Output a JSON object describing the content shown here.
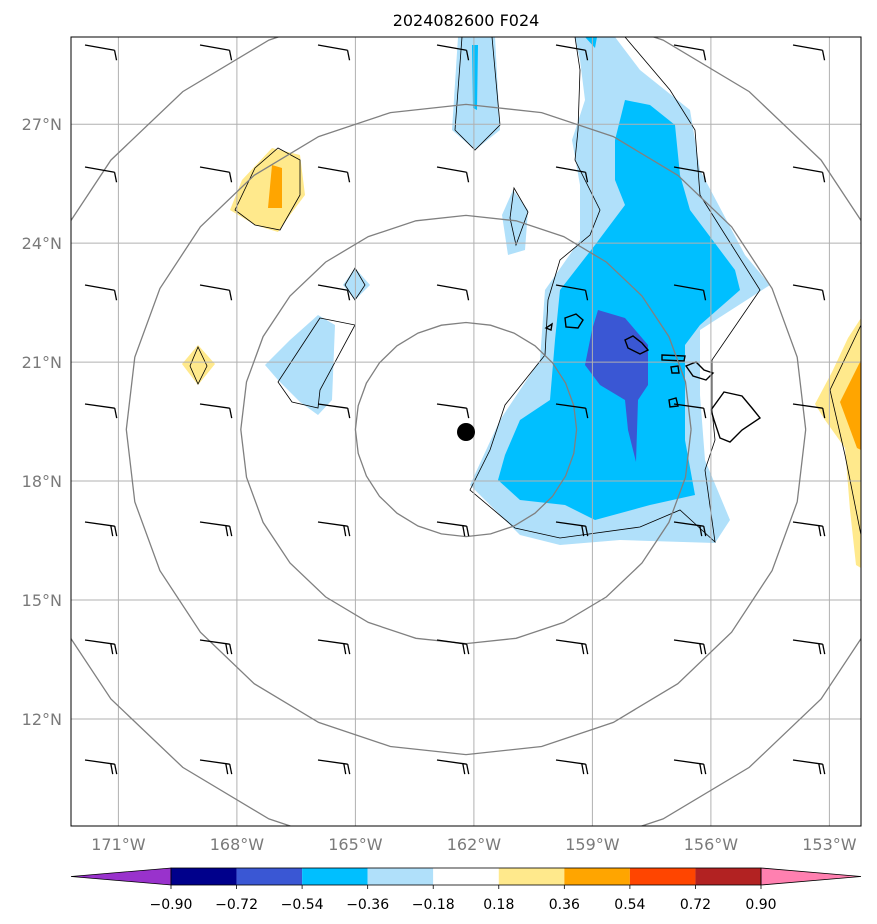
{
  "title": "2024082600 F024",
  "map": {
    "lon_range": [
      -172.2,
      -152.2
    ],
    "lat_range": [
      9.3,
      29.2
    ],
    "grid_lons": [
      -171,
      -168,
      -165,
      -162,
      -159,
      -156,
      -153
    ],
    "grid_lats": [
      12,
      15,
      18,
      21,
      24,
      27
    ],
    "lon_labels": [
      "171°W",
      "168°W",
      "165°W",
      "162°W",
      "159°W",
      "156°W",
      "153°W"
    ],
    "lat_labels": [
      "12°N",
      "15°N",
      "18°N",
      "21°N",
      "24°N",
      "27°N"
    ],
    "storm_center": {
      "lon": -162.2,
      "lat": 19.3
    },
    "range_rings": [
      {
        "r_lon": 2.8,
        "r_lat": 2.7
      },
      {
        "r_lon": 5.7,
        "r_lat": 5.4
      },
      {
        "r_lon": 8.6,
        "r_lat": 8.2
      },
      {
        "r_lon": 11.5,
        "r_lat": 10.9
      }
    ]
  },
  "colorbar": {
    "levels": [
      "-0.90",
      "-0.72",
      "-0.54",
      "-0.36",
      "-0.18",
      "0.18",
      "0.36",
      "0.54",
      "0.72",
      "0.90"
    ],
    "colors": [
      "#9932cc",
      "#00008b",
      "#3a57d4",
      "#00bfff",
      "#b0e0fa",
      "#ffffff",
      "#ffe98c",
      "#ffa500",
      "#ff4500",
      "#b22222",
      "#ff80b0"
    ]
  },
  "colors": {
    "grid": "#b0b0b0",
    "rings": "#808080",
    "light_blue": "#b0e0fa",
    "mid_blue": "#00bfff",
    "royal_blue": "#3a57d4",
    "light_yellow": "#ffe98c",
    "orange": "#ffa500"
  }
}
